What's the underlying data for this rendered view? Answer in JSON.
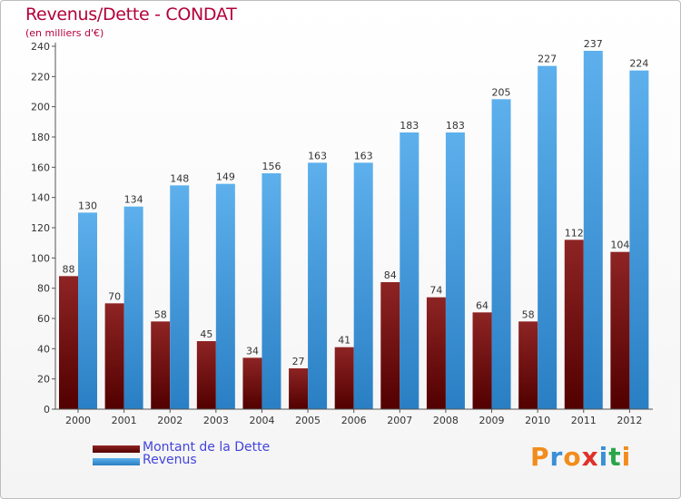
{
  "chart_data": {
    "type": "bar",
    "title": "Revenus/Dette - CONDAT",
    "subtitle": "(en milliers d'€)",
    "categories": [
      "2000",
      "2001",
      "2002",
      "2003",
      "2004",
      "2005",
      "2006",
      "2007",
      "2008",
      "2009",
      "2010",
      "2011",
      "2012"
    ],
    "series": [
      {
        "name": "Montant de la Dette",
        "color": "#7a1414",
        "values": [
          88,
          70,
          58,
          45,
          34,
          27,
          41,
          84,
          74,
          64,
          58,
          112,
          104
        ]
      },
      {
        "name": "Revenus",
        "color": "#4a9fe0",
        "values": [
          130,
          134,
          148,
          149,
          156,
          163,
          163,
          183,
          183,
          205,
          227,
          237,
          224
        ]
      }
    ],
    "ylim": [
      0,
      240
    ],
    "yticks": [
      0,
      20,
      40,
      60,
      80,
      100,
      120,
      140,
      160,
      180,
      200,
      220,
      240
    ],
    "xlabel": "",
    "ylabel": "",
    "grid": false,
    "legend_position": "bottom-left"
  },
  "brand": {
    "letters": [
      {
        "char": "P",
        "color": "#f28c1c"
      },
      {
        "char": "r",
        "color": "#3a8fd8"
      },
      {
        "char": "o",
        "color": "#f28c1c"
      },
      {
        "char": "x",
        "color": "#e0302a"
      },
      {
        "char": "i",
        "color": "#3a8fd8"
      },
      {
        "char": "t",
        "color": "#2aa64a"
      },
      {
        "char": "i",
        "color": "#f28c1c"
      }
    ]
  }
}
